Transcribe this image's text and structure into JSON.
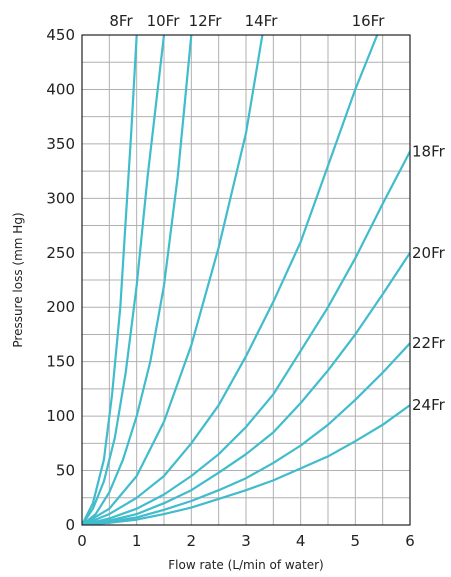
{
  "chart_data": {
    "type": "line",
    "xlabel": "Flow rate (L/min of water)",
    "ylabel": "Pressure loss (mm Hg)",
    "xlim": [
      0,
      6
    ],
    "ylim": [
      0,
      450
    ],
    "x_ticks": [
      "0",
      "1",
      "2",
      "3",
      "4",
      "5",
      "6"
    ],
    "y_ticks": [
      "0",
      "50",
      "100",
      "150",
      "200",
      "250",
      "300",
      "350",
      "400",
      "450"
    ],
    "grid": true,
    "grid_minor_x": 0.5,
    "grid_minor_y": 25,
    "line_color": "#40bccc",
    "grid_color": "#b0b0b0",
    "label_placement": "top",
    "series": [
      {
        "name": "8Fr",
        "label_side": "top",
        "points": [
          [
            0,
            0
          ],
          [
            0.2,
            20
          ],
          [
            0.4,
            60
          ],
          [
            0.55,
            120
          ],
          [
            0.7,
            200
          ],
          [
            0.8,
            280
          ],
          [
            0.9,
            360
          ],
          [
            1.0,
            450
          ]
        ]
      },
      {
        "name": "10Fr",
        "label_side": "top",
        "points": [
          [
            0,
            0
          ],
          [
            0.2,
            15
          ],
          [
            0.4,
            40
          ],
          [
            0.6,
            80
          ],
          [
            0.8,
            140
          ],
          [
            1.0,
            220
          ],
          [
            1.2,
            320
          ],
          [
            1.5,
            450
          ]
        ]
      },
      {
        "name": "12Fr",
        "label_side": "top",
        "points": [
          [
            0,
            0
          ],
          [
            0.25,
            10
          ],
          [
            0.5,
            30
          ],
          [
            0.75,
            60
          ],
          [
            1.0,
            100
          ],
          [
            1.25,
            150
          ],
          [
            1.5,
            220
          ],
          [
            1.75,
            320
          ],
          [
            2.0,
            450
          ]
        ]
      },
      {
        "name": "14Fr",
        "label_side": "top",
        "points": [
          [
            0,
            0
          ],
          [
            0.5,
            15
          ],
          [
            1.0,
            45
          ],
          [
            1.5,
            95
          ],
          [
            2.0,
            165
          ],
          [
            2.5,
            255
          ],
          [
            3.0,
            360
          ],
          [
            3.3,
            450
          ]
        ]
      },
      {
        "name": "16Fr",
        "label_side": "top",
        "points": [
          [
            0,
            0
          ],
          [
            0.5,
            10
          ],
          [
            1.0,
            25
          ],
          [
            1.5,
            45
          ],
          [
            2.0,
            75
          ],
          [
            2.5,
            110
          ],
          [
            3.0,
            155
          ],
          [
            3.5,
            205
          ],
          [
            4.0,
            260
          ],
          [
            4.5,
            330
          ],
          [
            5.0,
            400
          ],
          [
            5.4,
            450
          ]
        ]
      },
      {
        "name": "18Fr",
        "label_side": "right",
        "points": [
          [
            0,
            0
          ],
          [
            0.5,
            6
          ],
          [
            1.0,
            15
          ],
          [
            1.5,
            28
          ],
          [
            2.0,
            45
          ],
          [
            2.5,
            65
          ],
          [
            3.0,
            90
          ],
          [
            3.5,
            120
          ],
          [
            4.0,
            160
          ],
          [
            4.5,
            200
          ],
          [
            5.0,
            245
          ],
          [
            5.5,
            295
          ],
          [
            6.0,
            343
          ]
        ]
      },
      {
        "name": "20Fr",
        "label_side": "right",
        "points": [
          [
            0,
            0
          ],
          [
            0.5,
            4
          ],
          [
            1.0,
            10
          ],
          [
            1.5,
            20
          ],
          [
            2.0,
            32
          ],
          [
            2.5,
            48
          ],
          [
            3.0,
            65
          ],
          [
            3.5,
            85
          ],
          [
            4.0,
            112
          ],
          [
            4.5,
            142
          ],
          [
            5.0,
            175
          ],
          [
            5.5,
            212
          ],
          [
            6.0,
            250
          ]
        ]
      },
      {
        "name": "22Fr",
        "label_side": "right",
        "points": [
          [
            0,
            0
          ],
          [
            0.5,
            3
          ],
          [
            1.0,
            7
          ],
          [
            1.5,
            14
          ],
          [
            2.0,
            22
          ],
          [
            2.5,
            32
          ],
          [
            3.0,
            43
          ],
          [
            3.5,
            57
          ],
          [
            4.0,
            73
          ],
          [
            4.5,
            92
          ],
          [
            5.0,
            115
          ],
          [
            5.5,
            140
          ],
          [
            6.0,
            167
          ]
        ]
      },
      {
        "name": "24Fr",
        "label_side": "right",
        "points": [
          [
            0,
            0
          ],
          [
            0.5,
            2
          ],
          [
            1.0,
            5
          ],
          [
            1.5,
            10
          ],
          [
            2.0,
            16
          ],
          [
            2.5,
            24
          ],
          [
            3.0,
            32
          ],
          [
            3.5,
            41
          ],
          [
            4.0,
            52
          ],
          [
            4.5,
            63
          ],
          [
            5.0,
            77
          ],
          [
            5.5,
            92
          ],
          [
            6.0,
            110
          ]
        ]
      }
    ]
  }
}
